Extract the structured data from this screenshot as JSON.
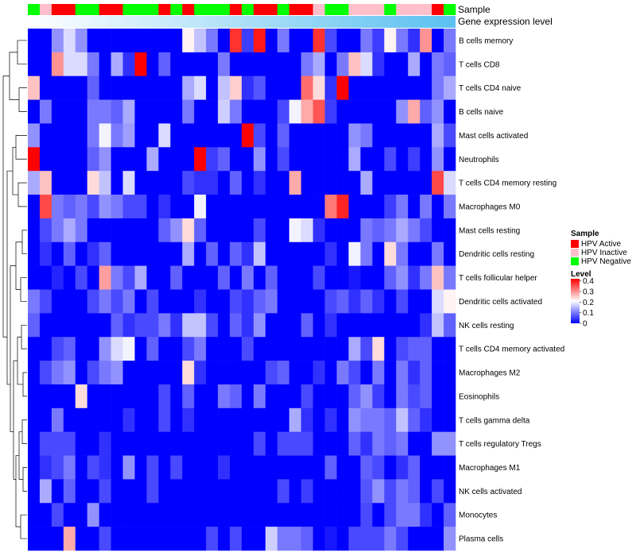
{
  "chart_data": {
    "type": "heatmap",
    "annotation_labels": [
      "Sample",
      "Gene expression level"
    ],
    "column_samples": [
      "Negative",
      "Inactive",
      "Active",
      "Active",
      "Negative",
      "Negative",
      "Active",
      "Active",
      "Negative",
      "Negative",
      "Negative",
      "Active",
      "Negative",
      "Active",
      "Negative",
      "Negative",
      "Negative",
      "Active",
      "Negative",
      "Active",
      "Active",
      "Negative",
      "Active",
      "Active",
      "Inactive",
      "Negative",
      "Negative",
      "Inactive",
      "Inactive",
      "Inactive",
      "Negative",
      "Inactive",
      "Inactive",
      "Inactive",
      "Active",
      "Negative"
    ],
    "sample_colors": {
      "Active": "#ff0000",
      "Inactive": "#ffc0cb",
      "Negative": "#00ff00"
    },
    "expression_gradient": [
      "#ffffff",
      "#5bc0f0"
    ],
    "row_labels": [
      "B cells memory",
      "T cells CD8",
      "T cells CD4 naive",
      "B cells naive",
      "Mast cells activated",
      "Neutrophils",
      "T cells CD4 memory resting",
      "Macrophages M0",
      "Mast cells resting",
      "Dendritic cells resting",
      "T cells follicular helper",
      "Dendritic cells activated",
      "NK cells resting",
      "T cells CD4 memory activated",
      "Macrophages M2",
      "Eosinophils",
      "T cells gamma delta",
      "T cells regulatory  Tregs",
      "Macrophages M1",
      "NK cells activated",
      "Monocytes",
      "Plasma cells"
    ],
    "values": [
      [
        0,
        0,
        0.12,
        0.18,
        0.12,
        0,
        0,
        0,
        0,
        0,
        0,
        0,
        0,
        0.22,
        0.16,
        0.1,
        0,
        0.38,
        0.05,
        0.4,
        0,
        0.1,
        0,
        0,
        0.38,
        0.06,
        0,
        0,
        0.1,
        0.05,
        0.22,
        0.1,
        0.04,
        0.3,
        0,
        0.1
      ],
      [
        0,
        0,
        0.3,
        0.18,
        0.18,
        0.1,
        0,
        0.14,
        0.04,
        0.42,
        0,
        0.08,
        0,
        0,
        0,
        0,
        0.1,
        0,
        0,
        0,
        0,
        0,
        0,
        0.1,
        0.14,
        0,
        0.1,
        0.26,
        0.18,
        0.04,
        0,
        0,
        0.14,
        0,
        0.1,
        0.08
      ],
      [
        0.26,
        0,
        0,
        0,
        0,
        0.08,
        0,
        0,
        0,
        0,
        0,
        0,
        0,
        0.14,
        0.18,
        0,
        0.16,
        0.25,
        0.04,
        0.07,
        0,
        0,
        0,
        0.33,
        0.24,
        0.04,
        0.42,
        0,
        0,
        0,
        0,
        0,
        0,
        0,
        0.1,
        0.14
      ],
      [
        0,
        0.1,
        0,
        0,
        0,
        0.1,
        0.1,
        0.08,
        0.14,
        0,
        0,
        0,
        0,
        0.1,
        0,
        0,
        0.17,
        0.1,
        0,
        0,
        0,
        0.06,
        0.2,
        0.28,
        0.35,
        0.05,
        0,
        0,
        0,
        0,
        0,
        0.12,
        0.28,
        0.08,
        0.12,
        0
      ],
      [
        0.12,
        0,
        0,
        0,
        0,
        0.1,
        0.2,
        0.1,
        0.13,
        0,
        0,
        0.18,
        0,
        0,
        0,
        0,
        0,
        0,
        0.43,
        0.06,
        0,
        0.08,
        0,
        0,
        0,
        0,
        0,
        0.12,
        0.1,
        0,
        0,
        0,
        0,
        0,
        0.14,
        0.06
      ],
      [
        0.42,
        0,
        0,
        0,
        0,
        0.08,
        0.12,
        0,
        0,
        0,
        0.14,
        0,
        0,
        0,
        0.42,
        0.05,
        0.08,
        0,
        0,
        0.12,
        0,
        0.06,
        0,
        0,
        0,
        0,
        0,
        0.14,
        0,
        0,
        0.06,
        0,
        0.05,
        0,
        0.12,
        0
      ],
      [
        0.14,
        0.26,
        0,
        0,
        0,
        0.24,
        0.16,
        0,
        0.18,
        0,
        0,
        0,
        0,
        0.06,
        0.04,
        0.04,
        0,
        0.08,
        0,
        0.04,
        0,
        0,
        0.28,
        0,
        0,
        0,
        0,
        0,
        0.14,
        0,
        0,
        0,
        0,
        0,
        0.36,
        0.18
      ],
      [
        0,
        0.36,
        0.1,
        0.08,
        0.1,
        0.06,
        0.12,
        0.1,
        0.06,
        0.06,
        0,
        0.04,
        0,
        0,
        0.2,
        0,
        0,
        0,
        0,
        0,
        0,
        0,
        0,
        0,
        0,
        0.32,
        0.39,
        0,
        0,
        0,
        0.05,
        0.1,
        0,
        0.1,
        0,
        0.1
      ],
      [
        0,
        0.06,
        0.1,
        0.14,
        0.1,
        0,
        0,
        0,
        0,
        0,
        0,
        0.08,
        0.12,
        0.24,
        0.08,
        0,
        0,
        0,
        0,
        0.06,
        0,
        0,
        0.2,
        0.18,
        0.04,
        0,
        0,
        0,
        0.1,
        0.08,
        0.1,
        0.14,
        0.1,
        0.06,
        0,
        0
      ],
      [
        0,
        0.04,
        0,
        0.08,
        0,
        0.04,
        0.08,
        0,
        0,
        0,
        0,
        0,
        0,
        0.14,
        0,
        0.08,
        0,
        0.08,
        0.04,
        0.16,
        0,
        0,
        0,
        0,
        0,
        0.04,
        0,
        0.2,
        0.1,
        0,
        0.24,
        0.1,
        0,
        0,
        0.1,
        0
      ],
      [
        0,
        0,
        0.03,
        0,
        0.06,
        0,
        0.29,
        0.1,
        0.06,
        0.14,
        0,
        0,
        0.08,
        0,
        0,
        0,
        0.08,
        0,
        0.1,
        0,
        0.08,
        0,
        0,
        0,
        0.06,
        0,
        0,
        0.02,
        0,
        0,
        0.08,
        0.12,
        0.04,
        0.1,
        0.26,
        0.1
      ],
      [
        0.1,
        0.06,
        0,
        0,
        0,
        0.06,
        0.1,
        0.06,
        0.1,
        0,
        0.06,
        0,
        0,
        0,
        0.04,
        0,
        0,
        0.06,
        0.04,
        0.08,
        0.1,
        0,
        0,
        0,
        0,
        0.06,
        0.08,
        0.04,
        0.08,
        0.04,
        0,
        0.06,
        0,
        0,
        0.18,
        0.22
      ],
      [
        0.08,
        0,
        0,
        0,
        0,
        0,
        0,
        0.08,
        0.04,
        0.06,
        0.06,
        0.1,
        0.04,
        0.16,
        0.16,
        0.06,
        0,
        0.08,
        0.04,
        0.12,
        0,
        0,
        0,
        0.08,
        0,
        0.04,
        0,
        0,
        0,
        0,
        0,
        0,
        0,
        0.04,
        0.16,
        0.08
      ],
      [
        0,
        0,
        0.06,
        0.08,
        0,
        0,
        0.12,
        0.18,
        0.2,
        0,
        0.08,
        0,
        0,
        0.06,
        0.1,
        0,
        0,
        0,
        0.06,
        0,
        0,
        0,
        0,
        0,
        0,
        0,
        0,
        0.14,
        0.06,
        0.24,
        0,
        0.06,
        0.08,
        0.08,
        0,
        0
      ],
      [
        0,
        0.06,
        0.1,
        0.12,
        0,
        0.06,
        0.1,
        0.12,
        0,
        0,
        0,
        0,
        0,
        0.24,
        0.04,
        0,
        0,
        0,
        0,
        0,
        0.06,
        0.08,
        0,
        0,
        0.04,
        0,
        0.1,
        0.06,
        0,
        0.1,
        0,
        0.1,
        0.04,
        0.08,
        0,
        0
      ],
      [
        0,
        0,
        0,
        0,
        0.24,
        0,
        0,
        0,
        0,
        0,
        0,
        0.06,
        0,
        0.08,
        0,
        0,
        0.1,
        0.08,
        0,
        0.1,
        0,
        0,
        0,
        0.06,
        0,
        0,
        0,
        0.08,
        0.12,
        0.05,
        0,
        0.1,
        0.06,
        0.08,
        0,
        0
      ],
      [
        0,
        0,
        0.1,
        0,
        0,
        0,
        0,
        0,
        0.04,
        0,
        0,
        0.06,
        0,
        0.04,
        0,
        0,
        0,
        0,
        0,
        0,
        0,
        0,
        0.14,
        0.04,
        0,
        0.04,
        0,
        0.12,
        0.1,
        0.1,
        0.08,
        0.16,
        0.08,
        0.04,
        0,
        0
      ],
      [
        0,
        0.06,
        0.06,
        0.06,
        0,
        0,
        0.04,
        0,
        0,
        0,
        0,
        0,
        0,
        0,
        0,
        0,
        0,
        0,
        0,
        0.06,
        0,
        0.06,
        0.06,
        0.06,
        0,
        0,
        0,
        0.08,
        0.04,
        0.1,
        0.08,
        0.1,
        0,
        0,
        0.12,
        0.12
      ],
      [
        0,
        0.04,
        0.06,
        0.1,
        0,
        0.06,
        0.04,
        0,
        0.12,
        0,
        0.06,
        0,
        0.06,
        0,
        0,
        0,
        0.04,
        0,
        0,
        0,
        0,
        0,
        0,
        0,
        0,
        0.08,
        0,
        0,
        0.08,
        0.06,
        0,
        0.04,
        0.08,
        0,
        0,
        0
      ],
      [
        0,
        0.14,
        0,
        0.08,
        0,
        0,
        0.06,
        0,
        0,
        0,
        0.06,
        0,
        0,
        0,
        0,
        0,
        0,
        0,
        0,
        0,
        0,
        0.06,
        0,
        0.05,
        0,
        0,
        0,
        0,
        0.07,
        0.12,
        0.06,
        0.1,
        0.08,
        0,
        0.06,
        0
      ],
      [
        0,
        0,
        0.06,
        0,
        0,
        0.12,
        0,
        0,
        0,
        0,
        0,
        0,
        0,
        0,
        0,
        0,
        0,
        0,
        0,
        0,
        0,
        0,
        0,
        0,
        0,
        0,
        0,
        0,
        0.06,
        0,
        0.06,
        0.1,
        0.1,
        0.04,
        0,
        0.08
      ],
      [
        0,
        0,
        0,
        0.28,
        0,
        0,
        0.06,
        0,
        0,
        0,
        0,
        0,
        0,
        0,
        0,
        0.06,
        0,
        0.06,
        0,
        0,
        0.17,
        0.1,
        0.1,
        0.08,
        0,
        0.02,
        0,
        0.06,
        0.06,
        0.06,
        0.1,
        0.06,
        0,
        0,
        0,
        0.12
      ]
    ],
    "legend_sample": {
      "title": "Sample",
      "entries": [
        {
          "label": "HPV Active",
          "color": "#ff0000"
        },
        {
          "label": "HPV Inactive",
          "color": "#ffc0cb"
        },
        {
          "label": "HPV Negative",
          "color": "#00ff00"
        }
      ]
    },
    "legend_level": {
      "title": "Level",
      "ticks": [
        "0.4",
        "0.3",
        "0.2",
        "0.1",
        "0"
      ],
      "tick_values": [
        0.4,
        0.3,
        0.2,
        0.1,
        0
      ],
      "range": [
        0,
        0.42
      ],
      "low_color": "#0000ff",
      "mid_color": "#ffffff",
      "high_color": "#ff0000",
      "mid_value": 0.21
    },
    "dendrogram": "row",
    "legend_position": "right"
  }
}
